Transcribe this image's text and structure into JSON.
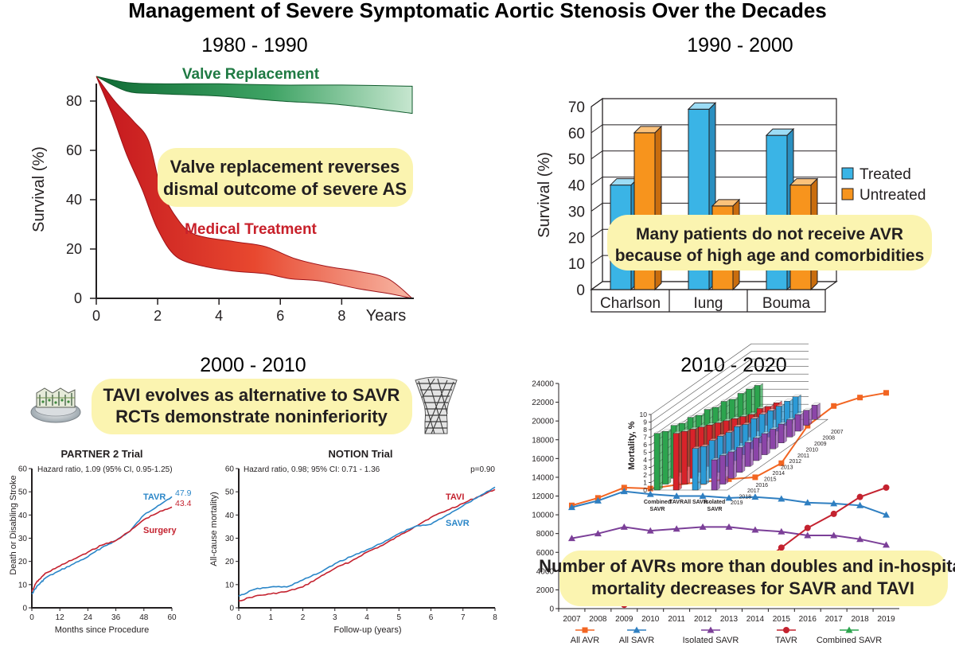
{
  "page": {
    "title": "Management of Severe Symptomatic Aortic Stenosis Over the Decades"
  },
  "colors": {
    "green": "#1f8a4c",
    "red": "#d8232a",
    "blue": "#3ab4e6",
    "orange": "#f7941d",
    "highlight": "#fbf4b0",
    "purple": "#7b3f98"
  },
  "chart_data": [
    {
      "id": "panel-1980",
      "type": "area",
      "heading": "1980 - 1990",
      "annotation": [
        "Valve replacement reverses",
        "dismal outcome of severe AS"
      ],
      "ylabel": "Survival (%)",
      "xlabel": "Years",
      "xlim": [
        0,
        10.3
      ],
      "ylim": [
        0,
        90
      ],
      "xticks": [
        0,
        2,
        4,
        6,
        8
      ],
      "yticks": [
        0,
        20,
        40,
        60,
        80
      ],
      "series": [
        {
          "name": "Valve Replacement",
          "color": "#1f8a4c",
          "upper": [
            [
              0,
              90
            ],
            [
              1,
              87.5
            ],
            [
              2,
              87
            ],
            [
              4,
              87
            ],
            [
              6,
              86.5
            ],
            [
              8,
              86.5
            ],
            [
              10.3,
              86
            ]
          ],
          "lower": [
            [
              0,
              90
            ],
            [
              1,
              84
            ],
            [
              2,
              83
            ],
            [
              4,
              82
            ],
            [
              6,
              80
            ],
            [
              8,
              78.5
            ],
            [
              10.3,
              75
            ]
          ]
        },
        {
          "name": "Medical Treatment",
          "color": "#d8232a",
          "upper": [
            [
              0,
              90
            ],
            [
              0.6,
              80
            ],
            [
              1.2,
              72
            ],
            [
              1.7,
              64
            ],
            [
              2.1,
              45
            ],
            [
              2.6,
              33
            ],
            [
              3.2,
              26
            ],
            [
              4.5,
              23
            ],
            [
              5.5,
              21
            ],
            [
              6.5,
              16
            ],
            [
              7.5,
              13
            ],
            [
              8.5,
              11
            ],
            [
              9.5,
              8
            ],
            [
              10.3,
              0
            ]
          ],
          "lower": [
            [
              0,
              90
            ],
            [
              0.5,
              75
            ],
            [
              1,
              58
            ],
            [
              1.5,
              44
            ],
            [
              2,
              28
            ],
            [
              2.6,
              17
            ],
            [
              3.5,
              13
            ],
            [
              4.5,
              11
            ],
            [
              5.5,
              10
            ],
            [
              6.3,
              8
            ],
            [
              7.3,
              7
            ],
            [
              8.5,
              4
            ],
            [
              9.5,
              2
            ],
            [
              10.3,
              0
            ]
          ]
        }
      ]
    },
    {
      "id": "panel-1990",
      "type": "bar",
      "heading": "1990 - 2000",
      "annotation": [
        "Many patients do not receive AVR",
        "because of high age and comorbidities"
      ],
      "ylabel": "Survival (%)",
      "ylim": [
        0,
        70
      ],
      "yticks": [
        0,
        10,
        20,
        30,
        40,
        50,
        60,
        70
      ],
      "categories": [
        "Charlson",
        "Iung",
        "Bouma"
      ],
      "series": [
        {
          "name": "Treated",
          "color": "#3ab4e6",
          "values": [
            40,
            69,
            59
          ]
        },
        {
          "name": "Untreated",
          "color": "#f7941d",
          "values": [
            60,
            32,
            40
          ]
        }
      ]
    },
    {
      "id": "partner2",
      "type": "line",
      "heading": "2000 - 2010",
      "annotation": [
        "TAVI evolves as alternative to SAVR",
        "RCTs demonstrate noninferiority"
      ],
      "title": "PARTNER 2 Trial",
      "note": "Hazard ratio, 1.09 (95% CI, 0.95-1.25)",
      "ylabel": "Death or Disabling Stroke",
      "xlabel": "Months since Procedure",
      "xlim": [
        0,
        60
      ],
      "ylim": [
        0,
        60
      ],
      "xticks": [
        0,
        12,
        24,
        36,
        48,
        60
      ],
      "yticks": [
        0,
        10,
        20,
        30,
        40,
        50,
        60
      ],
      "series": [
        {
          "name": "TAVR",
          "color": "#2a86c8",
          "end_label": "47.9",
          "points": [
            [
              0,
              6
            ],
            [
              2,
              9
            ],
            [
              4,
              11
            ],
            [
              6,
              13
            ],
            [
              12,
              16
            ],
            [
              18,
              19
            ],
            [
              24,
              22
            ],
            [
              30,
              26
            ],
            [
              36,
              29
            ],
            [
              42,
              33
            ],
            [
              48,
              40
            ],
            [
              54,
              44
            ],
            [
              60,
              47.9
            ]
          ]
        },
        {
          "name": "Surgery",
          "color": "#c4222f",
          "end_label": "43.4",
          "points": [
            [
              0,
              7
            ],
            [
              2,
              11
            ],
            [
              4,
              13
            ],
            [
              6,
              15
            ],
            [
              12,
              18
            ],
            [
              18,
              21
            ],
            [
              24,
              24
            ],
            [
              30,
              27
            ],
            [
              36,
              29
            ],
            [
              42,
              33
            ],
            [
              48,
              38
            ],
            [
              54,
              41
            ],
            [
              60,
              43.4
            ]
          ]
        }
      ]
    },
    {
      "id": "notion",
      "type": "line",
      "title": "NOTION Trial",
      "note": "Hazard ratio, 0.98; 95% CI: 0.71 - 1.36",
      "pvalue": "p=0.90",
      "ylabel": "All-cause mortality)",
      "xlabel": "Follow-up (years)",
      "xlim": [
        0,
        8
      ],
      "ylim": [
        0,
        60
      ],
      "xticks": [
        0,
        1,
        2,
        3,
        4,
        5,
        6,
        7,
        8
      ],
      "yticks": [
        0,
        10,
        20,
        30,
        40,
        50,
        60
      ],
      "series": [
        {
          "name": "TAVI",
          "color": "#c4222f",
          "points": [
            [
              0,
              3
            ],
            [
              0.5,
              5
            ],
            [
              1,
              6
            ],
            [
              1.5,
              7
            ],
            [
              2,
              9
            ],
            [
              2.5,
              13
            ],
            [
              3,
              17
            ],
            [
              3.5,
              20
            ],
            [
              4,
              24
            ],
            [
              4.5,
              27
            ],
            [
              5,
              31
            ],
            [
              5.5,
              35
            ],
            [
              6,
              39
            ],
            [
              6.5,
              42
            ],
            [
              7,
              45
            ],
            [
              7.5,
              48
            ],
            [
              8,
              51
            ]
          ]
        },
        {
          "name": "SAVR",
          "color": "#2a86c8",
          "points": [
            [
              0,
              5
            ],
            [
              0.5,
              8
            ],
            [
              1,
              9
            ],
            [
              1.5,
              9
            ],
            [
              2,
              12
            ],
            [
              2.5,
              15
            ],
            [
              3,
              19
            ],
            [
              3.5,
              22
            ],
            [
              4,
              25
            ],
            [
              4.5,
              28
            ],
            [
              5,
              32
            ],
            [
              5.5,
              35
            ],
            [
              6,
              36
            ],
            [
              6.5,
              40
            ],
            [
              7,
              44
            ],
            [
              7.5,
              48
            ],
            [
              8,
              52
            ]
          ]
        }
      ]
    },
    {
      "id": "panel-2010",
      "type": "line",
      "heading": "2010 - 2020",
      "annotation": [
        "Number of AVRs more than doubles and in-hospital",
        "mortality decreases for SAVR and TAVI"
      ],
      "categories": [
        "2007",
        "2008",
        "2009",
        "2010",
        "2011",
        "2012",
        "2013",
        "2014",
        "2015",
        "2016",
        "2017",
        "2018",
        "2019"
      ],
      "ylim": [
        0,
        24000
      ],
      "yticks": [
        0,
        2000,
        4000,
        6000,
        8000,
        10000,
        12000,
        14000,
        16000,
        18000,
        20000,
        22000,
        24000
      ],
      "series": [
        {
          "name": "All AVR",
          "color": "#f26522",
          "marker": "square",
          "values": [
            11000,
            11800,
            12900,
            12800,
            13200,
            13500,
            13800,
            14000,
            15500,
            19500,
            21600,
            22500,
            23000
          ]
        },
        {
          "name": "All SAVR",
          "color": "#2f7fc1",
          "marker": "triangle",
          "values": [
            10800,
            11500,
            12500,
            12200,
            12000,
            12000,
            11800,
            11900,
            11700,
            11300,
            11200,
            11000,
            10000
          ]
        },
        {
          "name": "Isolated SAVR",
          "color": "#7b3f98",
          "marker": "triangle",
          "values": [
            7500,
            8000,
            8700,
            8300,
            8500,
            8700,
            8700,
            8400,
            8200,
            7800,
            7800,
            7400,
            6800
          ]
        },
        {
          "name": "TAVR",
          "color": "#c4222f",
          "marker": "circle",
          "values": [
            null,
            null,
            400,
            1300,
            2100,
            2900,
            3600,
            4400,
            6500,
            8600,
            10100,
            11900,
            12900
          ]
        },
        {
          "name": "Combined SAVR",
          "color": "#2ca44e",
          "marker": "triangle",
          "values": [
            3100,
            3500,
            3600,
            3600,
            3500,
            3400,
            3400,
            3300,
            3300,
            3300,
            3300,
            3300,
            3300
          ]
        }
      ],
      "inset": {
        "type": "bar3d",
        "ylabel": "Mortality, %",
        "ylim": [
          0,
          10
        ],
        "yticks": [
          0,
          1,
          2,
          3,
          4,
          5,
          6,
          7,
          8,
          9,
          10
        ],
        "years": [
          "2007",
          "2008",
          "2009",
          "2010",
          "2011",
          "2012",
          "2013",
          "2014",
          "2015",
          "2016",
          "2017",
          "2018",
          "2019"
        ],
        "groups": [
          {
            "name": "Combined SAVR",
            "color": "#2ca44e",
            "values": [
              7.5,
              7,
              7,
              6.5,
              6.5,
              6,
              6,
              5.5,
              5.5,
              5,
              5,
              4.8,
              4.5
            ]
          },
          {
            "name": "TAVR",
            "color": "#d8232a",
            "values": [
              7.5,
              7,
              6.5,
              6,
              5.5,
              5,
              4.5,
              4,
              3.5,
              3,
              3,
              2.5,
              2.2
            ]
          },
          {
            "name": "All SAVR",
            "color": "#2b9ad6",
            "values": [
              5.5,
              5,
              5,
              4.8,
              4.5,
              4.5,
              4,
              4,
              3.8,
              3.5,
              3.3,
              3.2,
              3
            ]
          },
          {
            "name": "Isolated SAVR",
            "color": "#8b45a8",
            "values": [
              4,
              3.8,
              3.5,
              3.3,
              3.2,
              3,
              2.8,
              2.6,
              2.5,
              2.3,
              2.2,
              2,
              1.9
            ]
          }
        ]
      }
    }
  ]
}
